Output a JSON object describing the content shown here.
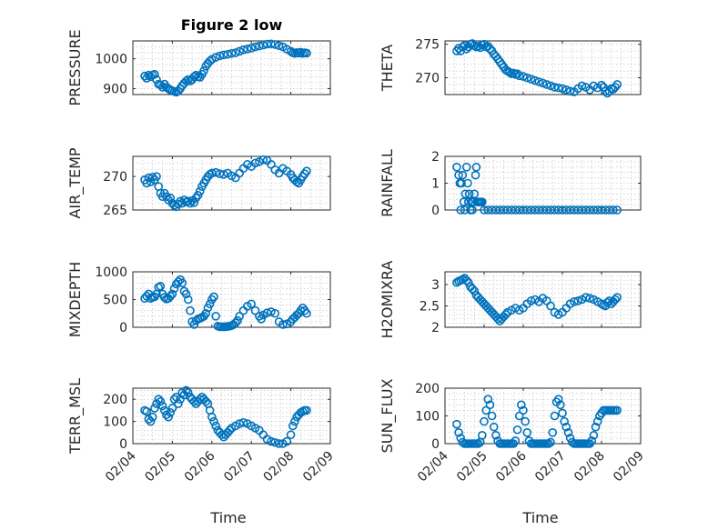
{
  "chart_data": [
    {
      "type": "scatter",
      "title": "Figure 2 low",
      "ylabel": "PRESSURE",
      "ylim": [
        880,
        1060
      ],
      "yticks": [
        900,
        1000
      ],
      "xlim": [
        0,
        5
      ],
      "xticks": [
        "02/04",
        "02/05",
        "02/06",
        "02/07",
        "02/08",
        "02/09"
      ],
      "grid": true,
      "marker_color": "#0072BD",
      "x": [
        0.3,
        0.35,
        0.4,
        0.45,
        0.5,
        0.55,
        0.6,
        0.65,
        0.7,
        0.75,
        0.8,
        0.85,
        0.9,
        0.95,
        1.0,
        1.05,
        1.1,
        1.15,
        1.2,
        1.25,
        1.3,
        1.35,
        1.4,
        1.45,
        1.5,
        1.55,
        1.6,
        1.65,
        1.7,
        1.75,
        1.8,
        1.85,
        1.9,
        1.95,
        2.0,
        2.1,
        2.2,
        2.3,
        2.4,
        2.5,
        2.6,
        2.7,
        2.8,
        2.9,
        3.0,
        3.1,
        3.2,
        3.3,
        3.4,
        3.5,
        3.6,
        3.7,
        3.8,
        3.9,
        4.0,
        4.05,
        4.1,
        4.15,
        4.2,
        4.25,
        4.3,
        4.35,
        4.4
      ],
      "y": [
        942,
        935,
        945,
        940,
        945,
        948,
        930,
        915,
        912,
        905,
        915,
        905,
        900,
        895,
        893,
        890,
        888,
        892,
        900,
        910,
        918,
        925,
        930,
        925,
        930,
        940,
        945,
        940,
        938,
        948,
        960,
        975,
        985,
        992,
        998,
        1005,
        1010,
        1013,
        1015,
        1018,
        1020,
        1025,
        1030,
        1033,
        1036,
        1040,
        1043,
        1046,
        1049,
        1050,
        1048,
        1044,
        1040,
        1032,
        1025,
        1020,
        1018,
        1021,
        1019,
        1022,
        1018,
        1020,
        1019
      ]
    },
    {
      "type": "scatter",
      "ylabel": "THETA",
      "ylim": [
        267.5,
        275.5
      ],
      "yticks": [
        270,
        275
      ],
      "xlim": [
        0,
        5
      ],
      "xticks": [
        "02/04",
        "02/05",
        "02/06",
        "02/07",
        "02/08",
        "02/09"
      ],
      "grid": true,
      "marker_color": "#0072BD",
      "x": [
        0.3,
        0.35,
        0.4,
        0.45,
        0.5,
        0.55,
        0.6,
        0.65,
        0.7,
        0.75,
        0.8,
        0.85,
        0.9,
        0.95,
        1.0,
        1.05,
        1.1,
        1.15,
        1.2,
        1.25,
        1.3,
        1.35,
        1.4,
        1.45,
        1.5,
        1.55,
        1.6,
        1.65,
        1.7,
        1.75,
        1.8,
        1.85,
        1.9,
        2.0,
        2.1,
        2.2,
        2.3,
        2.4,
        2.5,
        2.6,
        2.7,
        2.8,
        2.9,
        3.0,
        3.1,
        3.2,
        3.3,
        3.4,
        3.5,
        3.6,
        3.7,
        3.8,
        3.9,
        4.0,
        4.05,
        4.1,
        4.15,
        4.2,
        4.25,
        4.3,
        4.35,
        4.4
      ],
      "y": [
        274.0,
        274.4,
        274.0,
        274.6,
        274.8,
        274.3,
        274.6,
        275.0,
        275.1,
        274.8,
        274.6,
        274.7,
        274.5,
        274.9,
        275.0,
        274.6,
        274.7,
        274.3,
        274.0,
        273.5,
        273.2,
        272.8,
        272.4,
        272.0,
        271.6,
        271.2,
        271.0,
        270.8,
        270.6,
        270.7,
        270.5,
        270.6,
        270.3,
        270.2,
        270.0,
        269.8,
        269.6,
        269.4,
        269.2,
        269.0,
        268.8,
        268.6,
        268.5,
        268.4,
        268.2,
        268.0,
        267.9,
        268.4,
        268.8,
        268.6,
        268.2,
        268.8,
        268.5,
        268.9,
        268.6,
        268.0,
        267.7,
        268.0,
        268.4,
        268.3,
        268.6,
        269.0
      ]
    },
    {
      "type": "scatter",
      "ylabel": "AIR_TEMP",
      "ylim": [
        265,
        273
      ],
      "yticks": [
        265,
        270
      ],
      "xlim": [
        0,
        5
      ],
      "xticks": [
        "02/04",
        "02/05",
        "02/06",
        "02/07",
        "02/08",
        "02/09"
      ],
      "grid": true,
      "marker_color": "#0072BD",
      "x": [
        0.3,
        0.35,
        0.4,
        0.45,
        0.5,
        0.55,
        0.6,
        0.65,
        0.7,
        0.75,
        0.8,
        0.85,
        0.9,
        0.95,
        1.0,
        1.05,
        1.1,
        1.15,
        1.2,
        1.25,
        1.3,
        1.35,
        1.4,
        1.45,
        1.5,
        1.55,
        1.6,
        1.65,
        1.7,
        1.75,
        1.8,
        1.85,
        1.9,
        1.95,
        2.0,
        2.1,
        2.2,
        2.3,
        2.4,
        2.5,
        2.6,
        2.7,
        2.8,
        2.9,
        3.0,
        3.1,
        3.2,
        3.3,
        3.4,
        3.5,
        3.6,
        3.7,
        3.8,
        3.9,
        4.0,
        4.05,
        4.1,
        4.15,
        4.2,
        4.25,
        4.3,
        4.35,
        4.4
      ],
      "y": [
        269.5,
        269.0,
        269.8,
        269.2,
        269.9,
        269.5,
        270.0,
        268.5,
        267.5,
        267.0,
        267.5,
        267.0,
        266.5,
        266.8,
        266.0,
        265.7,
        265.5,
        265.9,
        266.3,
        266.0,
        266.5,
        266.2,
        266.3,
        266.0,
        266.4,
        266.1,
        266.8,
        267.2,
        267.8,
        268.5,
        269.0,
        269.5,
        270.0,
        270.3,
        270.5,
        270.6,
        270.4,
        270.3,
        270.5,
        270.1,
        269.8,
        270.5,
        271.2,
        271.8,
        271.5,
        272.0,
        272.2,
        272.5,
        272.4,
        271.8,
        271.0,
        270.5,
        271.2,
        270.8,
        270.3,
        269.8,
        269.5,
        269.2,
        269.0,
        269.5,
        270.0,
        270.4,
        270.8
      ]
    },
    {
      "type": "scatter",
      "ylabel": "RAINFALL",
      "ylim": [
        0,
        2
      ],
      "yticks": [
        0,
        1,
        2
      ],
      "xlim": [
        0,
        5
      ],
      "xticks": [
        "02/04",
        "02/05",
        "02/06",
        "02/07",
        "02/08",
        "02/09"
      ],
      "grid": true,
      "marker_color": "#0072BD",
      "x": [
        0.3,
        0.35,
        0.38,
        0.4,
        0.42,
        0.45,
        0.48,
        0.5,
        0.52,
        0.55,
        0.58,
        0.6,
        0.62,
        0.65,
        0.68,
        0.7,
        0.72,
        0.75,
        0.78,
        0.8,
        0.82,
        0.85,
        0.88,
        0.9,
        0.92,
        0.95,
        1.0,
        1.1,
        1.2,
        1.3,
        1.4,
        1.5,
        1.6,
        1.7,
        1.8,
        1.9,
        2.0,
        2.1,
        2.2,
        2.3,
        2.4,
        2.5,
        2.6,
        2.7,
        2.8,
        2.9,
        3.0,
        3.1,
        3.2,
        3.3,
        3.4,
        3.5,
        3.6,
        3.7,
        3.8,
        3.9,
        4.0,
        4.1,
        4.2,
        4.3,
        4.4
      ],
      "y": [
        1.6,
        1.3,
        1.0,
        0.0,
        1.0,
        1.3,
        0.3,
        0.0,
        0.6,
        1.6,
        1.0,
        0.3,
        0.6,
        0.0,
        0.3,
        0.0,
        0.3,
        0.6,
        1.3,
        1.6,
        0.3,
        0.3,
        0.3,
        0.3,
        0.3,
        0.3,
        0,
        0,
        0,
        0,
        0,
        0,
        0,
        0,
        0,
        0,
        0,
        0,
        0,
        0,
        0,
        0,
        0,
        0,
        0,
        0,
        0,
        0,
        0,
        0,
        0,
        0,
        0,
        0,
        0,
        0,
        0,
        0,
        0,
        0,
        0
      ]
    },
    {
      "type": "scatter",
      "ylabel": "MIXDEPTH",
      "ylim": [
        0,
        1000
      ],
      "yticks": [
        0,
        500,
        1000
      ],
      "xlim": [
        0,
        5
      ],
      "xticks": [
        "02/04",
        "02/05",
        "02/06",
        "02/07",
        "02/08",
        "02/09"
      ],
      "grid": true,
      "marker_color": "#0072BD",
      "x": [
        0.3,
        0.35,
        0.4,
        0.45,
        0.5,
        0.55,
        0.6,
        0.65,
        0.7,
        0.75,
        0.8,
        0.85,
        0.9,
        0.95,
        1.0,
        1.05,
        1.1,
        1.15,
        1.2,
        1.25,
        1.3,
        1.35,
        1.4,
        1.45,
        1.5,
        1.55,
        1.6,
        1.65,
        1.7,
        1.75,
        1.8,
        1.85,
        1.9,
        1.95,
        2.0,
        2.05,
        2.1,
        2.15,
        2.2,
        2.25,
        2.3,
        2.35,
        2.4,
        2.45,
        2.5,
        2.55,
        2.6,
        2.65,
        2.7,
        2.8,
        2.9,
        3.0,
        3.1,
        3.2,
        3.25,
        3.3,
        3.4,
        3.5,
        3.6,
        3.7,
        3.8,
        3.9,
        4.0,
        4.05,
        4.1,
        4.15,
        4.2,
        4.25,
        4.3,
        4.35,
        4.4
      ],
      "y": [
        520,
        560,
        600,
        520,
        540,
        550,
        600,
        720,
        740,
        600,
        540,
        510,
        520,
        560,
        600,
        700,
        780,
        820,
        860,
        800,
        650,
        600,
        500,
        300,
        100,
        50,
        120,
        150,
        160,
        180,
        200,
        250,
        350,
        420,
        500,
        550,
        200,
        20,
        10,
        10,
        10,
        10,
        15,
        20,
        30,
        50,
        80,
        120,
        200,
        300,
        380,
        420,
        300,
        200,
        150,
        220,
        260,
        280,
        250,
        100,
        50,
        60,
        100,
        150,
        180,
        220,
        250,
        300,
        350,
        300,
        250
      ]
    },
    {
      "type": "scatter",
      "ylabel": "H2OMIXRA",
      "ylim": [
        2,
        3.3
      ],
      "yticks": [
        2,
        2.5,
        3
      ],
      "xlim": [
        0,
        5
      ],
      "xticks": [
        "02/04",
        "02/05",
        "02/06",
        "02/07",
        "02/08",
        "02/09"
      ],
      "grid": true,
      "marker_color": "#0072BD",
      "x": [
        0.3,
        0.35,
        0.4,
        0.45,
        0.5,
        0.55,
        0.6,
        0.65,
        0.7,
        0.75,
        0.8,
        0.85,
        0.9,
        0.95,
        1.0,
        1.05,
        1.1,
        1.15,
        1.2,
        1.25,
        1.3,
        1.35,
        1.4,
        1.45,
        1.5,
        1.55,
        1.6,
        1.7,
        1.8,
        1.9,
        2.0,
        2.1,
        2.2,
        2.3,
        2.4,
        2.5,
        2.6,
        2.7,
        2.8,
        2.9,
        3.0,
        3.1,
        3.2,
        3.3,
        3.4,
        3.5,
        3.6,
        3.7,
        3.8,
        3.9,
        4.0,
        4.05,
        4.1,
        4.15,
        4.2,
        4.25,
        4.3,
        4.35,
        4.4
      ],
      "y": [
        3.05,
        3.08,
        3.1,
        3.12,
        3.15,
        3.1,
        3.05,
        2.95,
        2.9,
        2.85,
        2.75,
        2.7,
        2.65,
        2.6,
        2.55,
        2.5,
        2.45,
        2.4,
        2.35,
        2.3,
        2.25,
        2.2,
        2.15,
        2.2,
        2.25,
        2.3,
        2.35,
        2.4,
        2.45,
        2.4,
        2.45,
        2.55,
        2.62,
        2.65,
        2.6,
        2.68,
        2.62,
        2.5,
        2.35,
        2.3,
        2.35,
        2.45,
        2.55,
        2.6,
        2.62,
        2.65,
        2.7,
        2.68,
        2.65,
        2.6,
        2.55,
        2.52,
        2.5,
        2.58,
        2.62,
        2.55,
        2.6,
        2.65,
        2.7
      ]
    },
    {
      "type": "scatter",
      "ylabel": "TERR_MSL",
      "ylim": [
        0,
        250
      ],
      "yticks": [
        0,
        100,
        200
      ],
      "xlim": [
        0,
        5
      ],
      "xticks": [
        "02/04",
        "02/05",
        "02/06",
        "02/07",
        "02/08",
        "02/09"
      ],
      "grid": true,
      "marker_color": "#0072BD",
      "x": [
        0.3,
        0.35,
        0.4,
        0.45,
        0.5,
        0.55,
        0.6,
        0.65,
        0.7,
        0.75,
        0.8,
        0.85,
        0.9,
        0.95,
        1.0,
        1.05,
        1.1,
        1.15,
        1.2,
        1.25,
        1.3,
        1.35,
        1.4,
        1.45,
        1.5,
        1.55,
        1.6,
        1.65,
        1.7,
        1.75,
        1.8,
        1.85,
        1.9,
        1.95,
        2.0,
        2.05,
        2.1,
        2.15,
        2.2,
        2.25,
        2.3,
        2.35,
        2.4,
        2.45,
        2.5,
        2.6,
        2.7,
        2.8,
        2.9,
        3.0,
        3.1,
        3.2,
        3.3,
        3.4,
        3.5,
        3.6,
        3.7,
        3.8,
        3.9,
        4.0,
        4.05,
        4.1,
        4.15,
        4.2,
        4.25,
        4.3,
        4.35,
        4.4
      ],
      "y": [
        150,
        145,
        110,
        100,
        120,
        160,
        180,
        200,
        190,
        170,
        150,
        130,
        120,
        140,
        160,
        200,
        210,
        180,
        200,
        230,
        220,
        240,
        230,
        210,
        200,
        190,
        180,
        190,
        200,
        210,
        200,
        190,
        180,
        150,
        120,
        100,
        80,
        60,
        50,
        40,
        30,
        40,
        50,
        60,
        70,
        80,
        90,
        95,
        90,
        80,
        70,
        60,
        40,
        20,
        10,
        5,
        0,
        0,
        10,
        40,
        80,
        100,
        120,
        130,
        140,
        145,
        150,
        150
      ]
    },
    {
      "type": "scatter",
      "ylabel": "SUN_FLUX",
      "ylim": [
        0,
        200
      ],
      "yticks": [
        0,
        100,
        200
      ],
      "xlim": [
        0,
        5
      ],
      "xticks": [
        "02/04",
        "02/05",
        "02/06",
        "02/07",
        "02/08",
        "02/09"
      ],
      "grid": true,
      "marker_color": "#0072BD",
      "x": [
        0.3,
        0.35,
        0.4,
        0.45,
        0.5,
        0.55,
        0.6,
        0.65,
        0.7,
        0.75,
        0.8,
        0.85,
        0.9,
        0.95,
        1.0,
        1.05,
        1.1,
        1.15,
        1.2,
        1.25,
        1.3,
        1.35,
        1.4,
        1.45,
        1.5,
        1.55,
        1.6,
        1.65,
        1.7,
        1.75,
        1.8,
        1.85,
        1.9,
        1.95,
        2.0,
        2.05,
        2.1,
        2.15,
        2.2,
        2.25,
        2.3,
        2.35,
        2.4,
        2.45,
        2.5,
        2.55,
        2.6,
        2.65,
        2.7,
        2.75,
        2.8,
        2.85,
        2.9,
        2.95,
        3.0,
        3.05,
        3.1,
        3.15,
        3.2,
        3.25,
        3.3,
        3.35,
        3.4,
        3.45,
        3.5,
        3.55,
        3.6,
        3.65,
        3.7,
        3.75,
        3.8,
        3.85,
        3.9,
        3.95,
        4.0,
        4.05,
        4.1,
        4.15,
        4.2,
        4.25,
        4.3,
        4.35,
        4.4
      ],
      "y": [
        70,
        40,
        20,
        5,
        0,
        0,
        0,
        0,
        0,
        0,
        0,
        0,
        5,
        30,
        80,
        120,
        160,
        140,
        100,
        60,
        30,
        10,
        0,
        0,
        0,
        0,
        0,
        0,
        0,
        0,
        10,
        50,
        100,
        140,
        120,
        80,
        40,
        10,
        0,
        0,
        0,
        0,
        0,
        0,
        0,
        0,
        0,
        0,
        5,
        40,
        100,
        150,
        160,
        140,
        110,
        80,
        60,
        40,
        20,
        5,
        0,
        0,
        0,
        0,
        0,
        0,
        0,
        0,
        0,
        10,
        30,
        60,
        80,
        100,
        110,
        120,
        120,
        120,
        120,
        120,
        120,
        120,
        120
      ]
    }
  ],
  "xlabel_left": "Time",
  "xlabel_right": "Time"
}
